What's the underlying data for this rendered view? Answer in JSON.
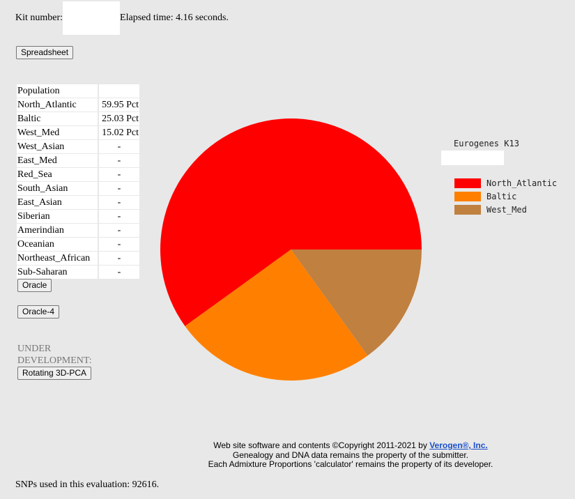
{
  "header": {
    "kit_label": "Kit number:",
    "elapsed_text": "Elapsed time: 4.16 seconds."
  },
  "buttons": {
    "spreadsheet": "Spreadsheet",
    "oracle": "Oracle",
    "oracle4": "Oracle-4",
    "rotating": "Rotating 3D-PCA"
  },
  "table": {
    "header": "Population",
    "rows": [
      {
        "name": "North_Atlantic",
        "value": "59.95 Pct"
      },
      {
        "name": "Baltic",
        "value": "25.03 Pct"
      },
      {
        "name": "West_Med",
        "value": "15.02 Pct"
      },
      {
        "name": "West_Asian",
        "value": "-"
      },
      {
        "name": "East_Med",
        "value": "-"
      },
      {
        "name": "Red_Sea",
        "value": "-"
      },
      {
        "name": "South_Asian",
        "value": "-"
      },
      {
        "name": "East_Asian",
        "value": "-"
      },
      {
        "name": "Siberian",
        "value": "-"
      },
      {
        "name": "Amerindian",
        "value": "-"
      },
      {
        "name": "Oceanian",
        "value": "-"
      },
      {
        "name": "Northeast_African",
        "value": "-"
      },
      {
        "name": "Sub-Saharan",
        "value": "-"
      }
    ]
  },
  "under_development": "UNDER DEVELOPMENT:",
  "chart_data": {
    "type": "pie",
    "title": "Eurogenes K13",
    "series": [
      {
        "name": "North_Atlantic",
        "value": 59.95,
        "color": "#ff0000"
      },
      {
        "name": "Baltic",
        "value": 25.03,
        "color": "#ff8000"
      },
      {
        "name": "West_Med",
        "value": 15.02,
        "color": "#c08040"
      }
    ],
    "legend": "right"
  },
  "footer": {
    "line1_prefix": "Web site software and contents ©Copyright 2011-2021 by",
    "link": "Verogen®, Inc.",
    "line2": "Genealogy and DNA data remains the property of the submitter.",
    "line3": "Each Admixture Proportions 'calculator' remains the property of its developer."
  },
  "snps_text": "SNPs used in this evaluation: 92616."
}
